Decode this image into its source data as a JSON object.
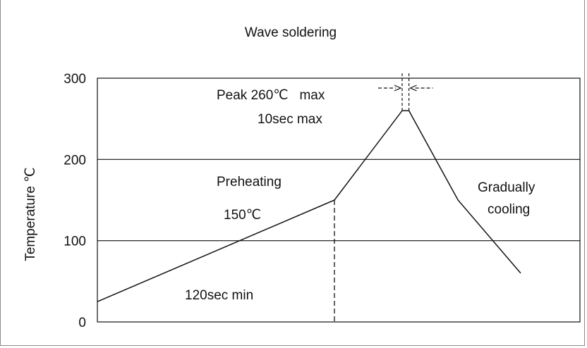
{
  "chart_data": {
    "type": "line",
    "title": "Wave soldering",
    "xlabel": "",
    "ylabel": "Temperature  ℃",
    "ylim": [
      0,
      300
    ],
    "yticks": [
      0,
      100,
      200,
      300
    ],
    "yticklabels": [
      "0",
      "100",
      "200",
      "300"
    ],
    "grid": "horizontal",
    "series": [
      {
        "x": [
          0,
          140,
          180,
          184,
          213,
          250
        ],
        "y": [
          25,
          150,
          260,
          260,
          150,
          60
        ]
      }
    ],
    "xlim": [
      0,
      285
    ],
    "annotations": {
      "peak_temp": "Peak 260℃   max",
      "peak_time": "10sec max",
      "preheating": "Preheating",
      "preheat_temp": "150℃",
      "preheat_time": "120sec min",
      "cooling_line1": "Gradually",
      "cooling_line2": "cooling"
    },
    "colors": {
      "line": "#111111",
      "grid": "#111111"
    }
  }
}
